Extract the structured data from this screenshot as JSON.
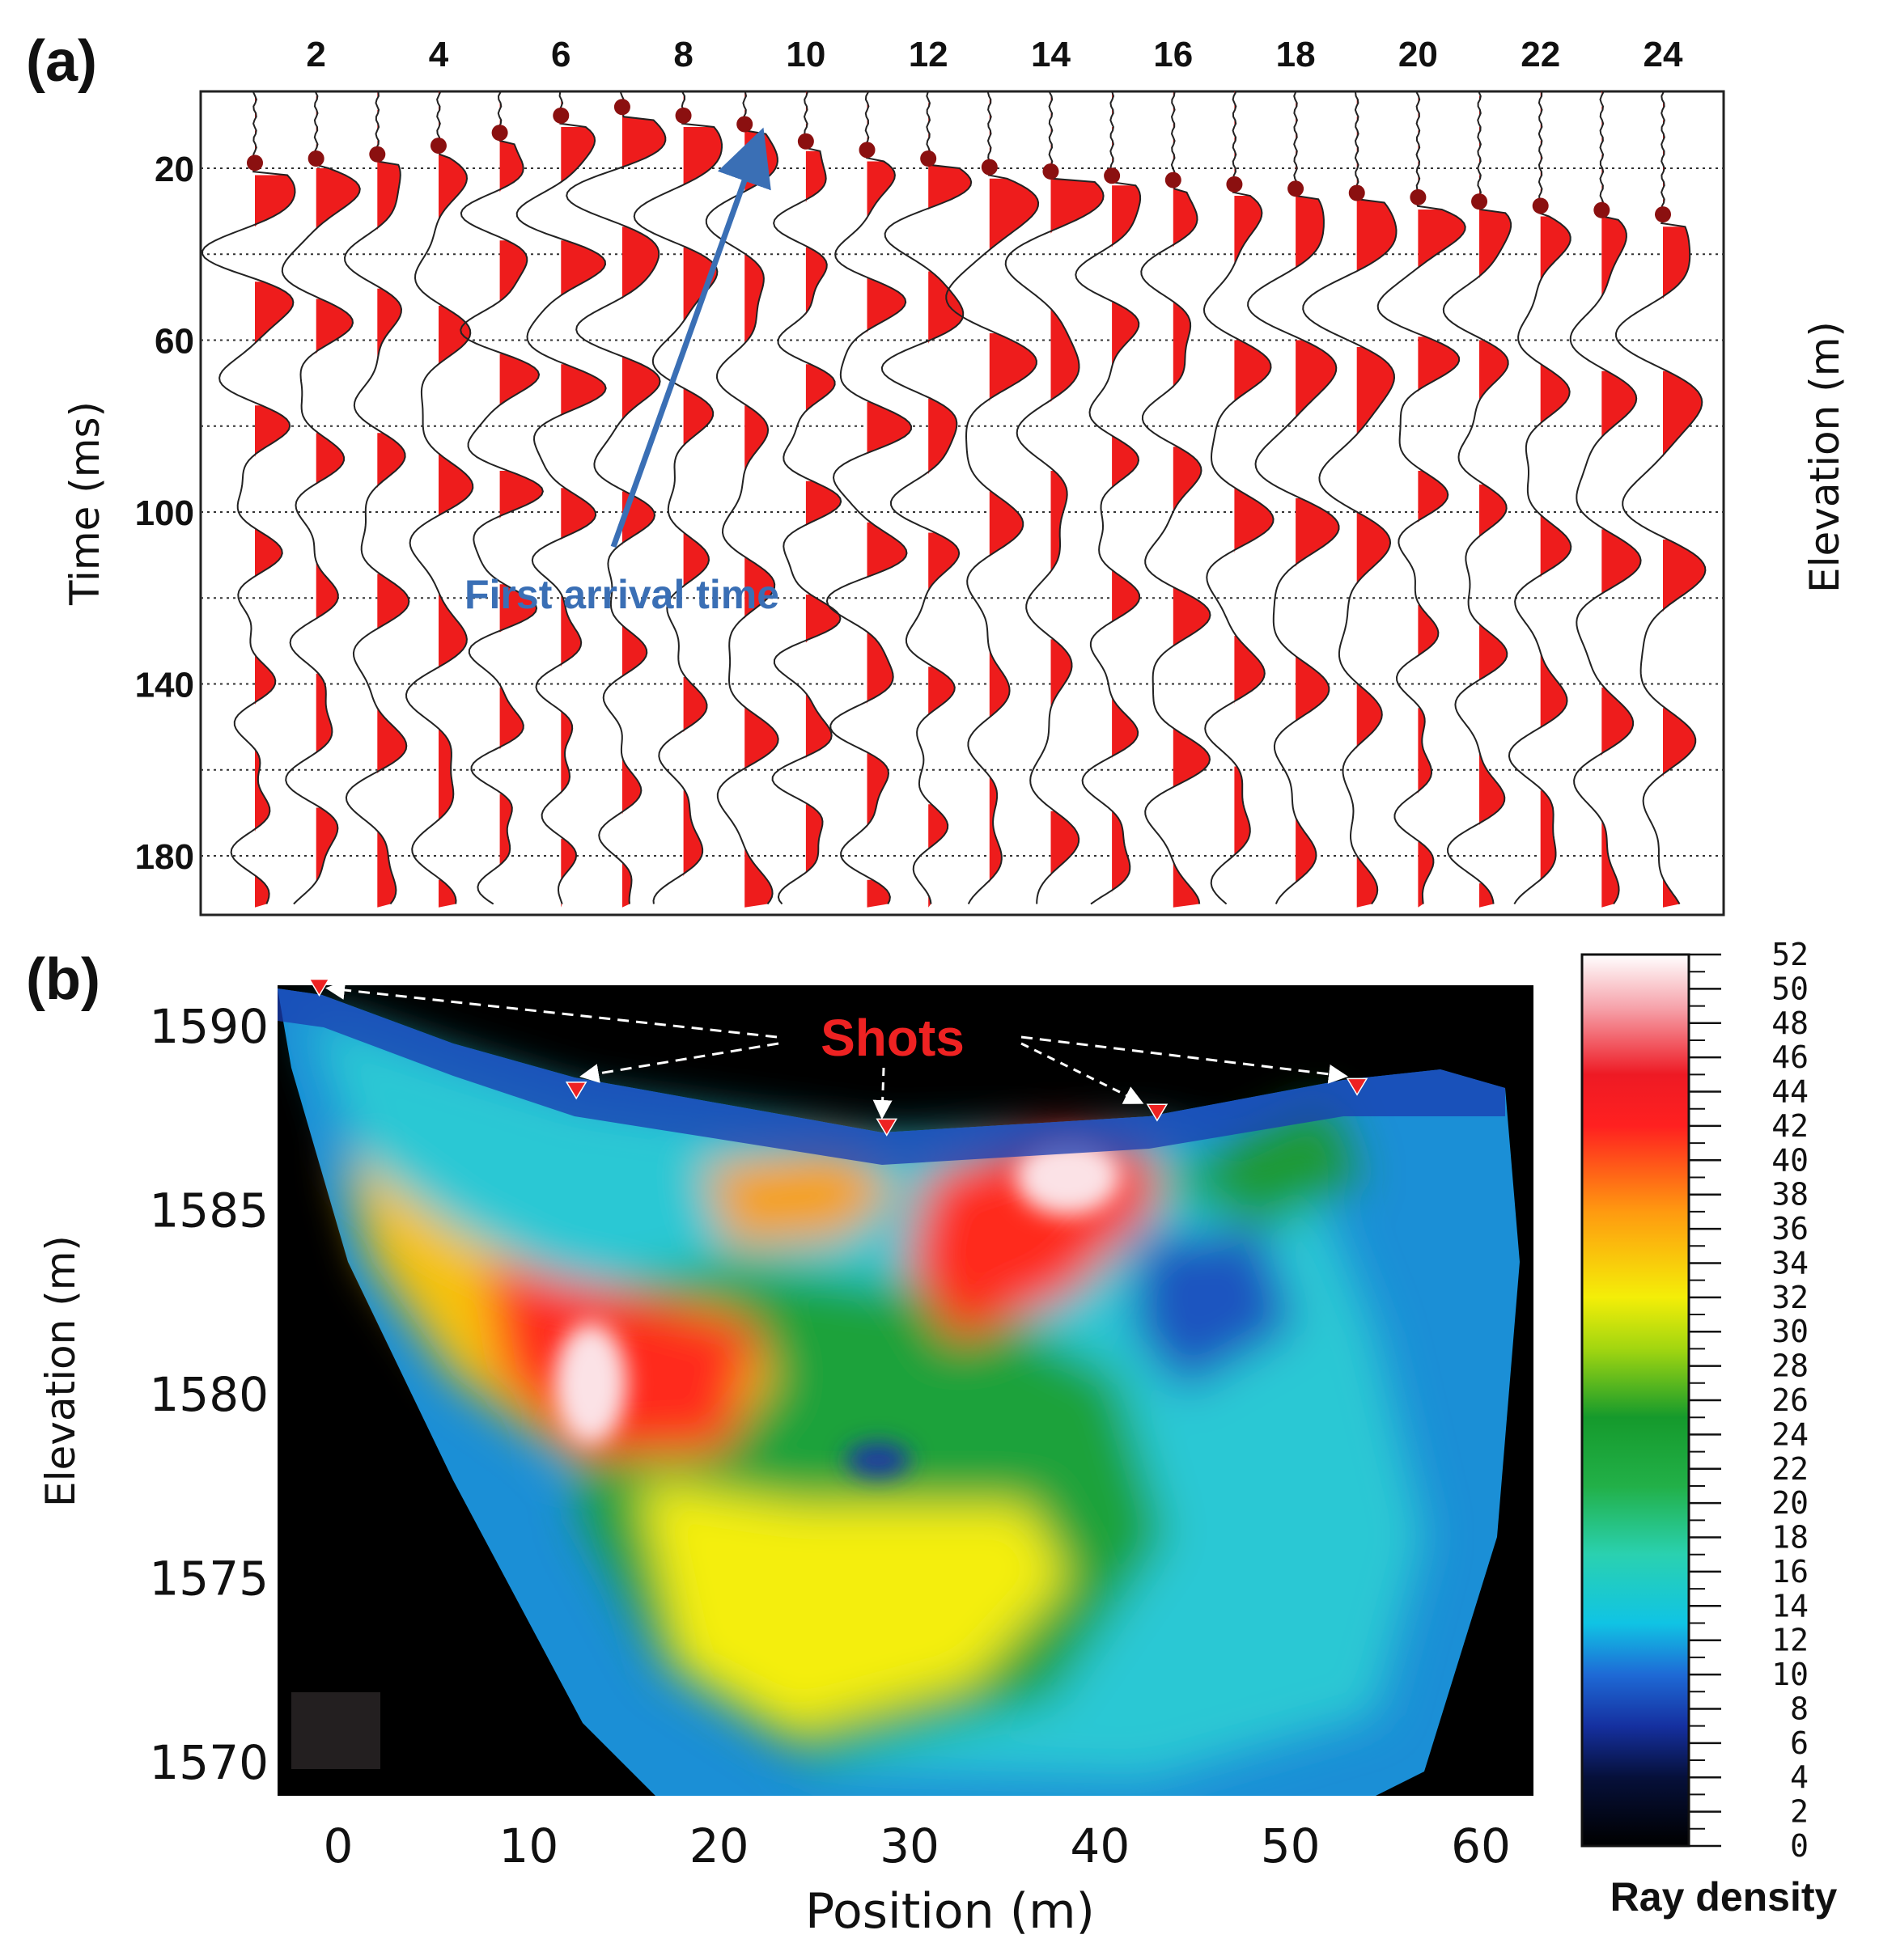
{
  "chart_data": [
    {
      "panel": "(a)",
      "type": "seismogram",
      "trace_tick_labels": [
        "2",
        "4",
        "6",
        "8",
        "10",
        "12",
        "14",
        "16",
        "18",
        "20",
        "22",
        "24"
      ],
      "trace_count": 24,
      "time_ticks": [
        "20",
        "60",
        "100",
        "140",
        "180"
      ],
      "time_ticks_values": [
        20,
        60,
        100,
        140,
        180
      ],
      "time_range": [
        0,
        192
      ],
      "ylabel": "Time (ms)",
      "right_label": "Elevation (m)",
      "annotation": "First arrival time",
      "first_arrival_ms": [
        21,
        20,
        19,
        17,
        14,
        10,
        8,
        10,
        12,
        16,
        18,
        20,
        22,
        23,
        24,
        25,
        26,
        27,
        28,
        29,
        30,
        31,
        32,
        33
      ],
      "colors": {
        "wiggle_fill": "#ee1c1c",
        "arrow": "#3a6fb5",
        "pick": "#8b1010"
      }
    },
    {
      "panel": "(b)",
      "type": "heatmap",
      "xlabel": "Position (m)",
      "ylabel": "Elevation (m)",
      "x_ticks": [
        "0",
        "10",
        "20",
        "30",
        "40",
        "50",
        "60"
      ],
      "x_ticks_values": [
        0,
        10,
        20,
        30,
        40,
        50,
        60
      ],
      "y_ticks": [
        "1590",
        "1585",
        "1580",
        "1575",
        "1570"
      ],
      "y_ticks_values": [
        1590,
        1585,
        1580,
        1575,
        1570
      ],
      "xlim": [
        -3,
        63
      ],
      "ylim": [
        1569,
        1591
      ],
      "annotation": "Shots",
      "shots": [
        {
          "x": -1,
          "elev": 1591.0
        },
        {
          "x": 12.5,
          "elev": 1588.2
        },
        {
          "x": 28.8,
          "elev": 1587.2
        },
        {
          "x": 43.0,
          "elev": 1587.6
        },
        {
          "x": 53.5,
          "elev": 1588.3
        }
      ],
      "colorbar": {
        "title": "Ray density",
        "ticks": [
          "52",
          "50",
          "48",
          "46",
          "44",
          "42",
          "40",
          "38",
          "36",
          "34",
          "32",
          "30",
          "28",
          "26",
          "24",
          "22",
          "20",
          "18",
          "16",
          "14",
          "12",
          "10",
          "8",
          "6",
          "4",
          "2",
          "0"
        ],
        "range": [
          0,
          52
        ],
        "stops": [
          {
            "value": 0,
            "color": "#000000"
          },
          {
            "value": 4,
            "color": "#06103a"
          },
          {
            "value": 7,
            "color": "#1530a0"
          },
          {
            "value": 10,
            "color": "#1e6ad6"
          },
          {
            "value": 13,
            "color": "#10c4e4"
          },
          {
            "value": 17,
            "color": "#2ad1b0"
          },
          {
            "value": 21,
            "color": "#22b048"
          },
          {
            "value": 25,
            "color": "#159a2c"
          },
          {
            "value": 29,
            "color": "#a2d610"
          },
          {
            "value": 32,
            "color": "#f4ee08"
          },
          {
            "value": 37,
            "color": "#ff9a10"
          },
          {
            "value": 42,
            "color": "#ff2020"
          },
          {
            "value": 45,
            "color": "#ee1a24"
          },
          {
            "value": 49,
            "color": "#f6a6ae"
          },
          {
            "value": 52,
            "color": "#ffffff"
          }
        ]
      }
    }
  ]
}
